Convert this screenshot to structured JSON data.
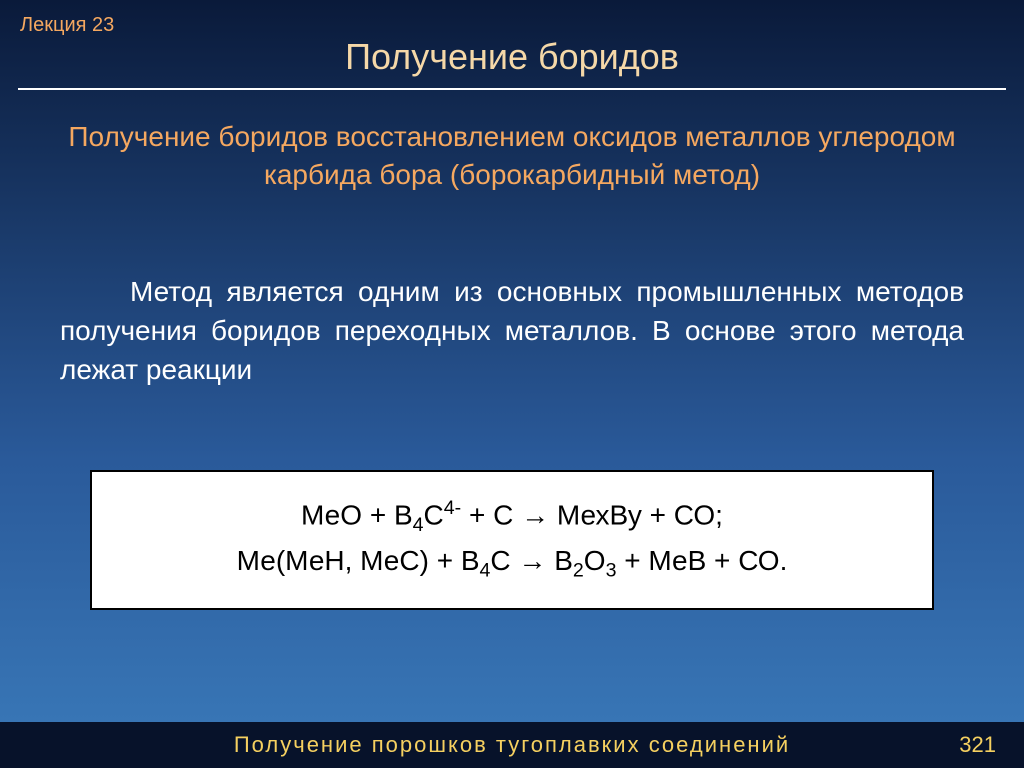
{
  "header": {
    "lecture_label": "Лекция 23",
    "slide_title": "Получение боридов"
  },
  "subtitle": {
    "lines": "Получение боридов восстановлением оксидов металлов углеродом карбида бора (борокарбидный метод)",
    "color": "#f5a860",
    "fontsize": 28
  },
  "body": {
    "text": "Метод является одним из основных промышленных методов получения боридов переходных металлов. В основе этого метода лежат реакции",
    "color": "#ffffff",
    "fontsize": 28
  },
  "formula_box": {
    "background": "#ffffff",
    "text_color": "#000000",
    "border_color": "#000000",
    "line1_html": "МеО + В<sub>4</sub>С<sup>4-</sup> + С &rarr; МехВу + СО;",
    "line2_html": "Ме(МеН, МеС) + В<sub>4</sub>С &rarr; В<sub>2</sub>О<sub>3</sub> + МеВ + СО.",
    "fontsize": 28
  },
  "footer": {
    "title": "Получение порошков тугоплавких соединений",
    "title_color": "#f5d060",
    "page_number": "321",
    "page_number_color": "#f5d060",
    "background": "#07122a"
  },
  "colors": {
    "bg_gradient_top": "#0a1a3a",
    "bg_gradient_bottom": "#3a7aba",
    "hr": "#ffffff",
    "title": "#f5d8a8"
  }
}
